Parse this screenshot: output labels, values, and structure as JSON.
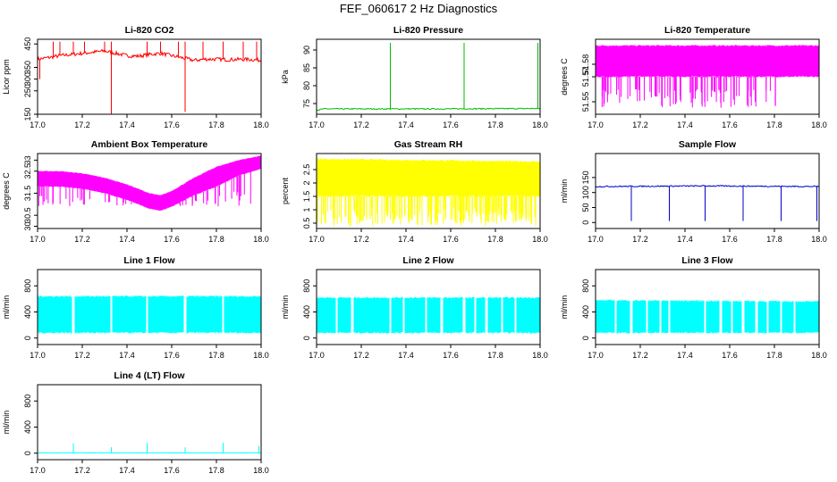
{
  "figure": {
    "title": "FEF_060617  2 Hz Diagnostics"
  },
  "chart_data": [
    {
      "id": "co2",
      "type": "line",
      "title": "Li-820 CO2",
      "ylabel": "Licor ppm",
      "color": "#ff0000",
      "xlim": [
        17.0,
        18.0
      ],
      "ylim": [
        150,
        470
      ],
      "xticks": [
        "17.0",
        "17.2",
        "17.4",
        "17.6",
        "17.8",
        "18.0"
      ],
      "yticks": [
        150,
        250,
        300,
        350,
        450
      ],
      "series": [
        {
          "name": "CO2",
          "mode": "baseline",
          "x": [
            17.0,
            17.05,
            17.1,
            17.15,
            17.2,
            17.25,
            17.3,
            17.35,
            17.4,
            17.45,
            17.5,
            17.55,
            17.6,
            17.65,
            17.7,
            17.75,
            17.8,
            17.85,
            17.9,
            17.95,
            18.0
          ],
          "values": [
            385,
            392,
            400,
            405,
            410,
            415,
            420,
            410,
            400,
            398,
            405,
            410,
            400,
            390,
            380,
            385,
            385,
            383,
            384,
            384,
            380
          ],
          "noise": 8,
          "spikes": [
            [
              17.0,
              150
            ],
            [
              17.01,
              300
            ],
            [
              17.07,
              460
            ],
            [
              17.1,
              460
            ],
            [
              17.16,
              460
            ],
            [
              17.21,
              460
            ],
            [
              17.3,
              460
            ],
            [
              17.33,
              150
            ],
            [
              17.33,
              460
            ],
            [
              17.49,
              460
            ],
            [
              17.55,
              460
            ],
            [
              17.63,
              460
            ],
            [
              17.66,
              460
            ],
            [
              17.66,
              160
            ],
            [
              17.74,
              460
            ],
            [
              17.83,
              460
            ],
            [
              17.92,
              460
            ],
            [
              17.98,
              460
            ]
          ]
        }
      ]
    },
    {
      "id": "pressure",
      "type": "line",
      "title": "Li-820 Pressure",
      "ylabel": "kPa",
      "color": "#00bb00",
      "xlim": [
        17.0,
        18.0
      ],
      "ylim": [
        72,
        93
      ],
      "xticks": [
        "17.0",
        "17.2",
        "17.4",
        "17.6",
        "17.8",
        "18.0"
      ],
      "yticks": [
        75,
        80,
        85,
        90
      ],
      "series": [
        {
          "name": "Pressure",
          "mode": "baseline",
          "x": [
            17.0,
            17.01,
            17.03,
            17.5,
            18.0
          ],
          "values": [
            73.2,
            73.2,
            73.5,
            73.5,
            73.6
          ],
          "noise": 0.15,
          "spikes": [
            [
              17.0,
              88.5
            ],
            [
              17.33,
              92
            ],
            [
              17.66,
              92
            ],
            [
              17.99,
              92
            ]
          ]
        }
      ]
    },
    {
      "id": "licor-temp",
      "type": "line",
      "title": "Li-820 Temperature",
      "ylabel": "degrees C",
      "color": "#ff00ff",
      "xlim": [
        17.0,
        18.0
      ],
      "ylim": [
        51.54,
        51.6
      ],
      "xticks": [
        "17.0",
        "17.2",
        "17.4",
        "17.6",
        "17.8",
        "18.0"
      ],
      "yticks": [
        51.55,
        51.57,
        51.58
      ],
      "series": [
        {
          "name": "Temperature",
          "mode": "band",
          "x": [
            17.0,
            18.0
          ],
          "lower": [
            51.57,
            51.57
          ],
          "upper": [
            51.595,
            51.595
          ],
          "drops_to": 51.545,
          "drop_count": 90,
          "drop_range": [
            17.02,
            17.83
          ]
        }
      ]
    },
    {
      "id": "ambient-temp",
      "type": "line",
      "title": "Ambient Box Temperature",
      "ylabel": "degrees C",
      "color": "#ff00ff",
      "xlim": [
        17.0,
        18.0
      ],
      "ylim": [
        29.9,
        33.3
      ],
      "xticks": [
        "17.0",
        "17.2",
        "17.4",
        "17.6",
        "17.8",
        "18.0"
      ],
      "yticks": [
        30.0,
        30.5,
        31.5,
        32.5,
        33.0
      ],
      "series": [
        {
          "name": "Ambient",
          "mode": "band",
          "x": [
            17.0,
            17.1,
            17.2,
            17.3,
            17.4,
            17.5,
            17.55,
            17.6,
            17.7,
            17.8,
            17.9,
            18.0
          ],
          "lower": [
            31.8,
            31.8,
            31.7,
            31.5,
            31.2,
            30.8,
            30.7,
            30.9,
            31.4,
            31.8,
            32.3,
            32.6
          ],
          "upper": [
            32.5,
            32.5,
            32.4,
            32.2,
            31.9,
            31.5,
            31.4,
            31.6,
            32.2,
            32.7,
            33.0,
            33.2
          ],
          "drops_to": 30.9,
          "drop_count": 70,
          "drop_range": [
            17.0,
            18.0
          ]
        }
      ]
    },
    {
      "id": "gas-rh",
      "type": "line",
      "title": "Gas Stream RH",
      "ylabel": "percent",
      "color": "#ffff00",
      "xlim": [
        17.0,
        18.0
      ],
      "ylim": [
        0.3,
        3.1
      ],
      "xticks": [
        "17.0",
        "17.2",
        "17.4",
        "17.6",
        "17.8",
        "18.0"
      ],
      "yticks": [
        0.5,
        1.0,
        1.5,
        2.0,
        2.5
      ],
      "series": [
        {
          "name": "RH",
          "mode": "band",
          "x": [
            17.0,
            18.0
          ],
          "lower": [
            1.5,
            1.5
          ],
          "upper": [
            2.9,
            2.8
          ],
          "drops_to": 0.4,
          "drop_count": 200,
          "drop_range": [
            17.0,
            18.0
          ]
        }
      ]
    },
    {
      "id": "sample-flow",
      "type": "line",
      "title": "Sample Flow",
      "ylabel": "ml/min",
      "color": "#0000cc",
      "xlim": [
        17.0,
        18.0
      ],
      "ylim": [
        -20,
        230
      ],
      "xticks": [
        "17.0",
        "17.2",
        "17.4",
        "17.6",
        "17.8",
        "18.0"
      ],
      "yticks": [
        0,
        50,
        100,
        150
      ],
      "series": [
        {
          "name": "Sample",
          "mode": "baseline",
          "x": [
            17.0,
            17.5,
            18.0
          ],
          "values": [
            120,
            122,
            120
          ],
          "noise": 2,
          "spikes": [
            [
              17.16,
              5
            ],
            [
              17.33,
              5
            ],
            [
              17.49,
              5
            ],
            [
              17.66,
              5
            ],
            [
              17.83,
              5
            ],
            [
              17.99,
              5
            ]
          ]
        }
      ]
    },
    {
      "id": "line1-flow",
      "type": "line",
      "title": "Line 1 Flow",
      "ylabel": "ml/min",
      "color": "#00ffff",
      "xlim": [
        17.0,
        18.0
      ],
      "ylim": [
        -100,
        1050
      ],
      "xticks": [
        "17.0",
        "17.2",
        "17.4",
        "17.6",
        "17.8",
        "18.0"
      ],
      "yticks": [
        0,
        400,
        800
      ],
      "series": [
        {
          "name": "Line 1",
          "mode": "band",
          "x": [
            17.0,
            18.0
          ],
          "lower": [
            80,
            80
          ],
          "upper": [
            640,
            640
          ],
          "gaps": [
            17.16,
            17.33,
            17.49,
            17.66,
            17.83
          ]
        }
      ]
    },
    {
      "id": "line2-flow",
      "type": "line",
      "title": "Line 2 Flow",
      "ylabel": "ml/min",
      "color": "#00ffff",
      "xlim": [
        17.0,
        18.0
      ],
      "ylim": [
        -100,
        1050
      ],
      "xticks": [
        "17.0",
        "17.2",
        "17.4",
        "17.6",
        "17.8",
        "18.0"
      ],
      "yticks": [
        0,
        400,
        800
      ],
      "series": [
        {
          "name": "Line 2",
          "mode": "band",
          "x": [
            17.0,
            18.0
          ],
          "lower": [
            80,
            80
          ],
          "upper": [
            620,
            620
          ],
          "gaps": [
            17.09,
            17.16,
            17.33,
            17.39,
            17.49,
            17.56,
            17.66,
            17.71,
            17.76,
            17.83,
            17.89
          ]
        }
      ]
    },
    {
      "id": "line3-flow",
      "type": "line",
      "title": "Line 3 Flow",
      "ylabel": "ml/min",
      "color": "#00ffff",
      "xlim": [
        17.0,
        18.0
      ],
      "ylim": [
        -100,
        1050
      ],
      "xticks": [
        "17.0",
        "17.2",
        "17.4",
        "17.6",
        "17.8",
        "18.0"
      ],
      "yticks": [
        0,
        400,
        800
      ],
      "series": [
        {
          "name": "Line 3",
          "mode": "band",
          "x": [
            17.0,
            18.0
          ],
          "lower": [
            80,
            80
          ],
          "upper": [
            580,
            560
          ],
          "gaps": [
            17.09,
            17.16,
            17.23,
            17.29,
            17.33,
            17.49,
            17.56,
            17.61,
            17.66,
            17.72,
            17.77,
            17.83,
            17.89
          ]
        }
      ]
    },
    {
      "id": "line4-flow",
      "type": "line",
      "title": "Line 4 (LT) Flow",
      "ylabel": "ml/min",
      "color": "#00ffff",
      "xlim": [
        17.0,
        18.0
      ],
      "ylim": [
        -100,
        1050
      ],
      "xticks": [
        "17.0",
        "17.2",
        "17.4",
        "17.6",
        "17.8",
        "18.0"
      ],
      "yticks": [
        0,
        400,
        800
      ],
      "series": [
        {
          "name": "Line 4",
          "mode": "baseline",
          "x": [
            17.0,
            18.0
          ],
          "values": [
            5,
            5
          ],
          "noise": 2,
          "spikes": [
            [
              17.16,
              150
            ],
            [
              17.33,
              90
            ],
            [
              17.49,
              160
            ],
            [
              17.66,
              90
            ],
            [
              17.83,
              160
            ],
            [
              17.99,
              110
            ]
          ]
        }
      ]
    }
  ]
}
